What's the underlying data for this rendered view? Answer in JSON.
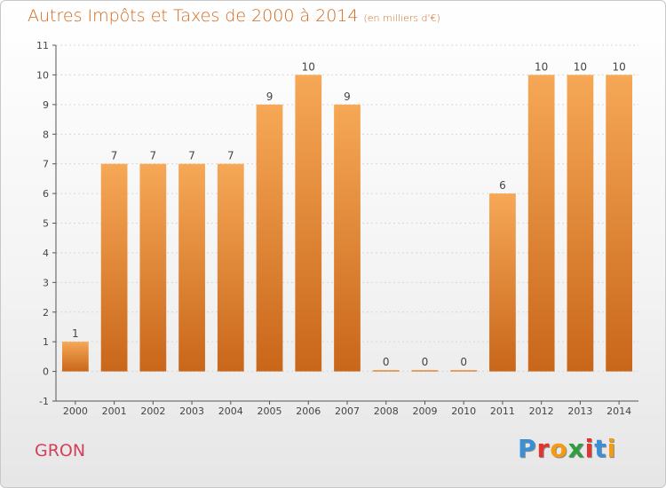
{
  "title": "Autres Impôts et Taxes de 2000 à 2014",
  "unit": "(en milliers d'€)",
  "commune": "GRON",
  "logo": {
    "text": "Proxiti",
    "letters": [
      {
        "char": "P",
        "color": "#3a8fd6"
      },
      {
        "char": "r",
        "color": "#e3342f"
      },
      {
        "char": "o",
        "color": "#f39c12"
      },
      {
        "char": "x",
        "color": "#2e9e3e"
      },
      {
        "char": "i",
        "color": "#e3342f"
      },
      {
        "char": "t",
        "color": "#3a8fd6"
      },
      {
        "char": "i",
        "color": "#f39c12"
      }
    ]
  },
  "colors": {
    "bar_top": "#f6a856",
    "bar_bottom": "#c9661a",
    "axis": "#555555",
    "grid": "#d8d8d8",
    "label": "#444444"
  },
  "chart_data": {
    "type": "bar",
    "categories": [
      "2000",
      "2001",
      "2002",
      "2003",
      "2004",
      "2005",
      "2006",
      "2007",
      "2008",
      "2009",
      "2010",
      "2011",
      "2012",
      "2013",
      "2014"
    ],
    "values": [
      1,
      7,
      7,
      7,
      7,
      9,
      10,
      9,
      0,
      0,
      0,
      6,
      10,
      10,
      10
    ],
    "ylim": [
      -1,
      11
    ],
    "yticks": [
      -1,
      0,
      1,
      2,
      3,
      4,
      5,
      6,
      7,
      8,
      9,
      10,
      11
    ],
    "grid": true
  }
}
